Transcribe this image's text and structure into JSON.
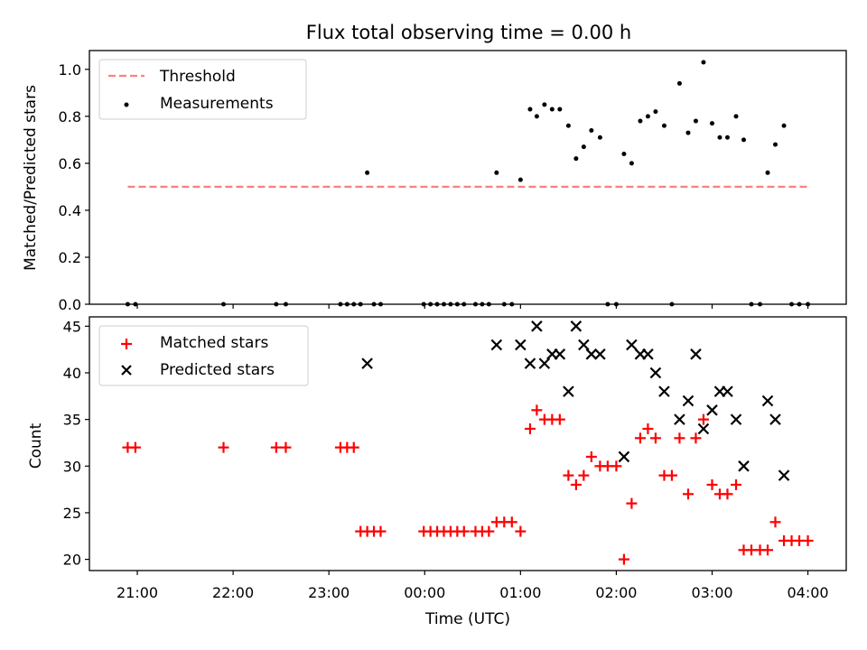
{
  "figure": {
    "title": "Flux total observing time = 0.00 h"
  },
  "chart_data": [
    {
      "type": "scatter",
      "ylabel": "Matched/Predicted stars",
      "xlabel": "",
      "xlim": [
        -3.5,
        4.4
      ],
      "ylim": [
        0.0,
        1.08
      ],
      "yticks": [
        0.0,
        0.2,
        0.4,
        0.6,
        0.8,
        1.0
      ],
      "ytick_labels": [
        "0.0",
        "0.2",
        "0.4",
        "0.6",
        "0.8",
        "1.0"
      ],
      "legend": {
        "placement": "top-left",
        "entries": [
          "Threshold",
          "Measurements"
        ]
      },
      "threshold": {
        "name": "Threshold",
        "y": 0.5,
        "x_range": [
          -3.1,
          4.0
        ],
        "color": "#ff7f7f",
        "style": "dashed"
      },
      "series": [
        {
          "name": "Measurements",
          "color": "#000000",
          "points": [
            [
              -3.1,
              0.0
            ],
            [
              -3.02,
              0.0
            ],
            [
              -2.1,
              0.0
            ],
            [
              -1.55,
              0.0
            ],
            [
              -1.45,
              0.0
            ],
            [
              -0.88,
              0.0
            ],
            [
              -0.81,
              0.0
            ],
            [
              -0.74,
              0.0
            ],
            [
              -0.67,
              0.0
            ],
            [
              -0.6,
              0.56
            ],
            [
              -0.53,
              0.0
            ],
            [
              -0.46,
              0.0
            ],
            [
              -0.01,
              0.0
            ],
            [
              0.06,
              0.0
            ],
            [
              0.13,
              0.0
            ],
            [
              0.2,
              0.0
            ],
            [
              0.27,
              0.0
            ],
            [
              0.34,
              0.0
            ],
            [
              0.41,
              0.0
            ],
            [
              0.53,
              0.0
            ],
            [
              0.6,
              0.0
            ],
            [
              0.67,
              0.0
            ],
            [
              0.75,
              0.56
            ],
            [
              0.83,
              0.0
            ],
            [
              0.91,
              0.0
            ],
            [
              1.0,
              0.53
            ],
            [
              1.1,
              0.83
            ],
            [
              1.17,
              0.8
            ],
            [
              1.25,
              0.85
            ],
            [
              1.33,
              0.83
            ],
            [
              1.41,
              0.83
            ],
            [
              1.5,
              0.76
            ],
            [
              1.58,
              0.62
            ],
            [
              1.66,
              0.67
            ],
            [
              1.74,
              0.74
            ],
            [
              1.83,
              0.71
            ],
            [
              1.91,
              0.0
            ],
            [
              2.0,
              0.0
            ],
            [
              2.08,
              0.64
            ],
            [
              2.16,
              0.6
            ],
            [
              2.25,
              0.78
            ],
            [
              2.33,
              0.8
            ],
            [
              2.41,
              0.82
            ],
            [
              2.5,
              0.76
            ],
            [
              2.58,
              0.0
            ],
            [
              2.66,
              0.94
            ],
            [
              2.75,
              0.73
            ],
            [
              2.83,
              0.78
            ],
            [
              2.91,
              1.03
            ],
            [
              3.0,
              0.77
            ],
            [
              3.08,
              0.71
            ],
            [
              3.16,
              0.71
            ],
            [
              3.25,
              0.8
            ],
            [
              3.33,
              0.7
            ],
            [
              3.41,
              0.0
            ],
            [
              3.5,
              0.0
            ],
            [
              3.58,
              0.56
            ],
            [
              3.66,
              0.68
            ],
            [
              3.75,
              0.76
            ],
            [
              3.83,
              0.0
            ],
            [
              3.91,
              0.0
            ],
            [
              4.0,
              0.0
            ]
          ]
        }
      ]
    },
    {
      "type": "scatter",
      "ylabel": "Count",
      "xlabel": "Time (UTC)",
      "xlim": [
        -3.5,
        4.4
      ],
      "ylim": [
        18.8,
        46.0
      ],
      "yticks": [
        20,
        25,
        30,
        35,
        40,
        45
      ],
      "ytick_labels": [
        "20",
        "25",
        "30",
        "35",
        "40",
        "45"
      ],
      "xticks": [
        -3,
        -2,
        -1,
        0,
        1,
        2,
        3,
        4
      ],
      "xtick_labels": [
        "21:00",
        "22:00",
        "23:00",
        "00:00",
        "01:00",
        "02:00",
        "03:00",
        "04:00"
      ],
      "legend": {
        "placement": "top-left",
        "entries": [
          "Matched stars",
          "Predicted stars"
        ]
      },
      "series": [
        {
          "name": "Matched stars",
          "marker": "plus",
          "color": "#ff0000",
          "points": [
            [
              -3.1,
              32
            ],
            [
              -3.02,
              32
            ],
            [
              -2.1,
              32
            ],
            [
              -1.55,
              32
            ],
            [
              -1.45,
              32
            ],
            [
              -0.88,
              32
            ],
            [
              -0.81,
              32
            ],
            [
              -0.74,
              32
            ],
            [
              -0.67,
              23
            ],
            [
              -0.6,
              23
            ],
            [
              -0.53,
              23
            ],
            [
              -0.46,
              23
            ],
            [
              -0.01,
              23
            ],
            [
              0.06,
              23
            ],
            [
              0.13,
              23
            ],
            [
              0.2,
              23
            ],
            [
              0.27,
              23
            ],
            [
              0.34,
              23
            ],
            [
              0.41,
              23
            ],
            [
              0.53,
              23
            ],
            [
              0.6,
              23
            ],
            [
              0.67,
              23
            ],
            [
              0.75,
              24
            ],
            [
              0.83,
              24
            ],
            [
              0.91,
              24
            ],
            [
              1.0,
              23
            ],
            [
              1.1,
              34
            ],
            [
              1.17,
              36
            ],
            [
              1.25,
              35
            ],
            [
              1.33,
              35
            ],
            [
              1.41,
              35
            ],
            [
              1.5,
              29
            ],
            [
              1.58,
              28
            ],
            [
              1.66,
              29
            ],
            [
              1.74,
              31
            ],
            [
              1.83,
              30
            ],
            [
              1.91,
              30
            ],
            [
              2.0,
              30
            ],
            [
              2.08,
              20
            ],
            [
              2.16,
              26
            ],
            [
              2.25,
              33
            ],
            [
              2.33,
              34
            ],
            [
              2.41,
              33
            ],
            [
              2.5,
              29
            ],
            [
              2.58,
              29
            ],
            [
              2.66,
              33
            ],
            [
              2.75,
              27
            ],
            [
              2.83,
              33
            ],
            [
              2.91,
              35
            ],
            [
              3.0,
              28
            ],
            [
              3.08,
              27
            ],
            [
              3.16,
              27
            ],
            [
              3.25,
              28
            ],
            [
              3.33,
              21
            ],
            [
              3.41,
              21
            ],
            [
              3.5,
              21
            ],
            [
              3.58,
              21
            ],
            [
              3.66,
              24
            ],
            [
              3.75,
              22
            ],
            [
              3.83,
              22
            ],
            [
              3.91,
              22
            ],
            [
              4.0,
              22
            ]
          ]
        },
        {
          "name": "Predicted stars",
          "marker": "x",
          "color": "#000000",
          "points": [
            [
              -0.6,
              41
            ],
            [
              0.75,
              43
            ],
            [
              1.0,
              43
            ],
            [
              1.1,
              41
            ],
            [
              1.17,
              45
            ],
            [
              1.25,
              41
            ],
            [
              1.33,
              42
            ],
            [
              1.41,
              42
            ],
            [
              1.5,
              38
            ],
            [
              1.58,
              45
            ],
            [
              1.66,
              43
            ],
            [
              1.74,
              42
            ],
            [
              1.83,
              42
            ],
            [
              2.08,
              31
            ],
            [
              2.16,
              43
            ],
            [
              2.25,
              42
            ],
            [
              2.33,
              42
            ],
            [
              2.41,
              40
            ],
            [
              2.5,
              38
            ],
            [
              2.66,
              35
            ],
            [
              2.75,
              37
            ],
            [
              2.83,
              42
            ],
            [
              2.91,
              34
            ],
            [
              3.0,
              36
            ],
            [
              3.08,
              38
            ],
            [
              3.16,
              38
            ],
            [
              3.25,
              35
            ],
            [
              3.33,
              30
            ],
            [
              3.58,
              37
            ],
            [
              3.66,
              35
            ],
            [
              3.75,
              29
            ]
          ]
        }
      ]
    }
  ]
}
